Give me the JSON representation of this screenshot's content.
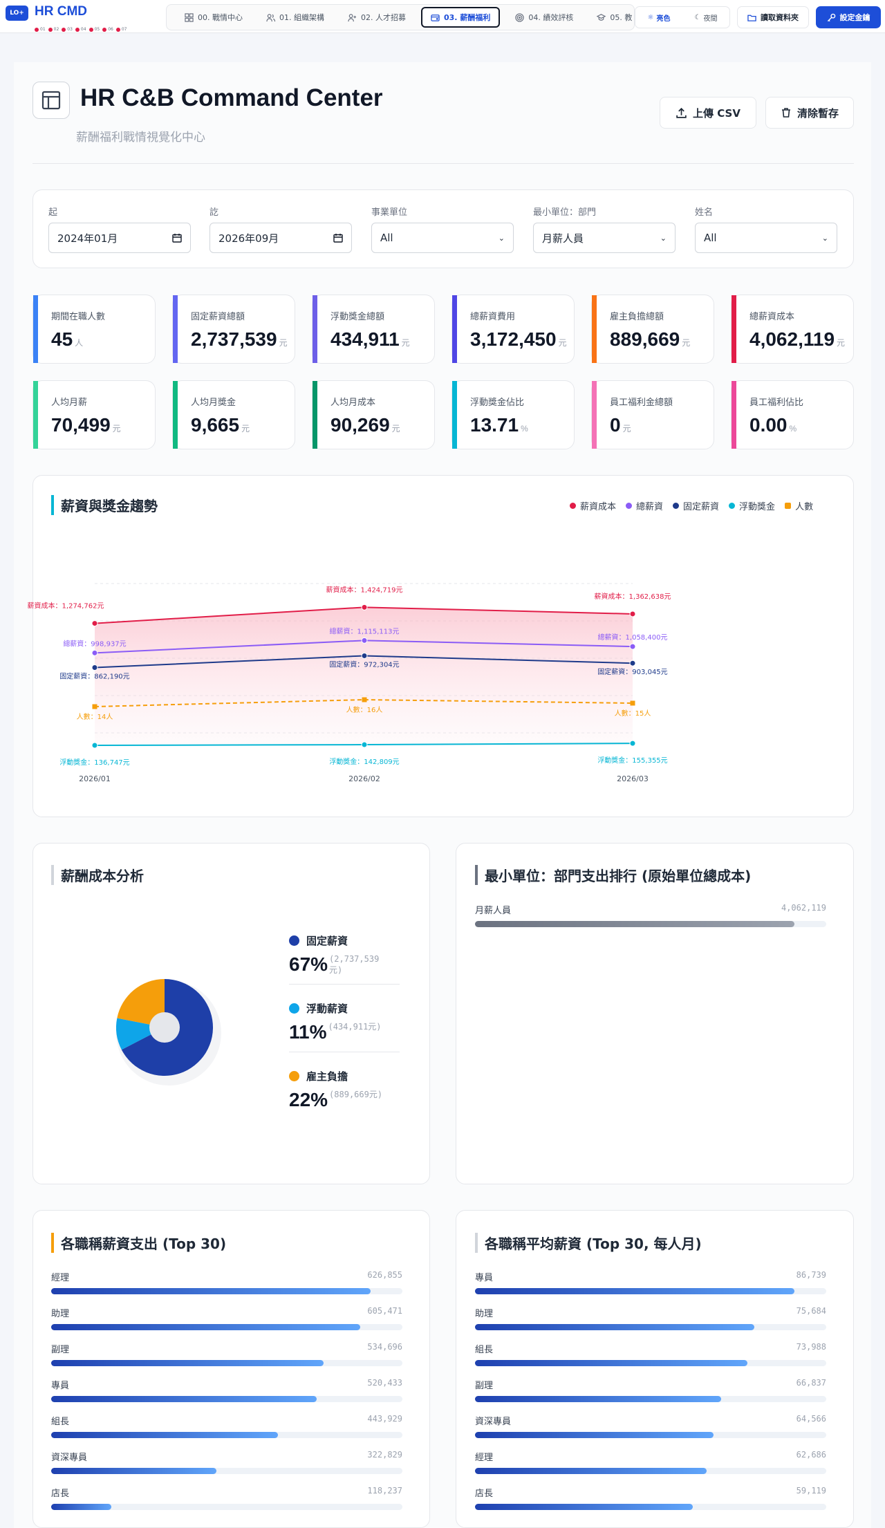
{
  "app": {
    "logo": "LO+",
    "title": "HR CMD",
    "steps": [
      "01",
      "02",
      "03",
      "04",
      "05",
      "06",
      "07"
    ]
  },
  "nav": {
    "tabs": [
      {
        "label": "00. 戰情中心",
        "icon": "grid-icon"
      },
      {
        "label": "01. 組織架構",
        "icon": "users-icon"
      },
      {
        "label": "02. 人才招募",
        "icon": "user-plus-icon"
      },
      {
        "label": "03. 薪酬福利",
        "icon": "wallet-icon"
      },
      {
        "label": "04. 績效評核",
        "icon": "target-icon"
      },
      {
        "label": "05. 教",
        "icon": "cap-icon"
      }
    ],
    "active_tab": 3,
    "theme_light": "亮色",
    "theme_dark": "夜間",
    "read_folder": "讀取資料夾",
    "set_key": "設定金鑰"
  },
  "header": {
    "title": "HR C&B Command Center",
    "subtitle": "薪酬福利戰情視覺化中心",
    "upload": "上傳 CSV",
    "clear": "清除暫存"
  },
  "filters": [
    {
      "label": "起",
      "value": "2024年01月",
      "type": "date"
    },
    {
      "label": "訖",
      "value": "2026年09月",
      "type": "date"
    },
    {
      "label": "事業單位",
      "value": "All",
      "type": "select"
    },
    {
      "label": "最小單位：部門",
      "value": "月薪人員",
      "type": "select"
    },
    {
      "label": "姓名",
      "value": "All",
      "type": "select"
    }
  ],
  "kpis_row1": [
    {
      "label": "期間在職人數",
      "value": "45",
      "unit": "人",
      "color": "#3b82f6"
    },
    {
      "label": "固定薪資總額",
      "value": "2,737,539",
      "unit": "元",
      "color": "#6366f1"
    },
    {
      "label": "浮動獎金總額",
      "value": "434,911",
      "unit": "元",
      "color": "#6d5fe8"
    },
    {
      "label": "總薪資費用",
      "value": "3,172,450",
      "unit": "元",
      "color": "#4f46e5"
    },
    {
      "label": "雇主負擔總額",
      "value": "889,669",
      "unit": "元",
      "color": "#f97316"
    },
    {
      "label": "總薪資成本",
      "value": "4,062,119",
      "unit": "元",
      "color": "#e11d48"
    }
  ],
  "kpis_row2": [
    {
      "label": "人均月薪",
      "value": "70,499",
      "unit": "元",
      "color": "#34d399"
    },
    {
      "label": "人均月獎金",
      "value": "9,665",
      "unit": "元",
      "color": "#10b981"
    },
    {
      "label": "人均月成本",
      "value": "90,269",
      "unit": "元",
      "color": "#059669"
    },
    {
      "label": "浮動獎金佔比",
      "value": "13.71",
      "unit": "%",
      "color": "#06b6d4"
    },
    {
      "label": "員工福利金總額",
      "value": "0",
      "unit": "元",
      "color": "#f472b6"
    },
    {
      "label": "員工福利佔比",
      "value": "0.00",
      "unit": "%",
      "color": "#ec4899"
    }
  ],
  "trend": {
    "title": "薪資與獎金趨勢",
    "legend": [
      {
        "name": "薪資成本",
        "color": "#e11d48"
      },
      {
        "name": "總薪資",
        "color": "#8b5cf6"
      },
      {
        "name": "固定薪資",
        "color": "#1e3a8a"
      },
      {
        "name": "浮動獎金",
        "color": "#06b6d4"
      },
      {
        "name": "人數",
        "color": "#f59e0b"
      }
    ]
  },
  "chart_data": {
    "type": "line",
    "x": [
      "2026/01",
      "2026/02",
      "2026/03"
    ],
    "series": [
      {
        "name": "薪資成本",
        "values": [
          1274762,
          1424719,
          1362638
        ],
        "color": "#e11d48",
        "labels": [
          "薪資成本：1,274,762元",
          "薪資成本：1,424,719元",
          "薪資成本：1,362,638元"
        ]
      },
      {
        "name": "總薪資",
        "values": [
          998937,
          1115113,
          1058400
        ],
        "color": "#8b5cf6",
        "labels": [
          "總薪資：998,937元",
          "總薪資：1,115,113元",
          "總薪資：1,058,400元"
        ]
      },
      {
        "name": "固定薪資",
        "values": [
          862190,
          972304,
          903045
        ],
        "color": "#1e3a8a",
        "labels": [
          "固定薪資：862,190元",
          "固定薪資：972,304元",
          "固定薪資：903,045元"
        ]
      },
      {
        "name": "浮動獎金",
        "values": [
          136747,
          142809,
          155355
        ],
        "color": "#06b6d4",
        "labels": [
          "浮動獎金：136,747元",
          "浮動獎金：142,809元",
          "浮動獎金：155,355元"
        ]
      },
      {
        "name": "人數",
        "values": [
          14,
          16,
          15
        ],
        "color": "#f59e0b",
        "dashed": true,
        "labels": [
          "人數：14人",
          "人數：16人",
          "人數：15人"
        ]
      }
    ]
  },
  "cost_analysis": {
    "title": "薪酬成本分析",
    "slices": [
      {
        "name": "固定薪資",
        "pct": "67%",
        "amount": "(2,737,539元)",
        "value": 2737539,
        "color": "#1e3fa8"
      },
      {
        "name": "浮動薪資",
        "pct": "11%",
        "amount": "(434,911元)",
        "value": 434911,
        "color": "#0ea5e9"
      },
      {
        "name": "雇主負擔",
        "pct": "22%",
        "amount": "(889,669元)",
        "value": 889669,
        "color": "#f59e0b"
      }
    ]
  },
  "dept_rank": {
    "title": "最小單位：部門支出排行 (原始單位總成本)",
    "rows": [
      {
        "name": "月薪人員",
        "value": "4,062,119",
        "ratio": 0.91
      }
    ]
  },
  "title_spend": {
    "title": "各職稱薪資支出 (Top 30)",
    "rows": [
      {
        "name": "經理",
        "value": "626,855",
        "ratio": 0.91
      },
      {
        "name": "助理",
        "value": "605,471",
        "ratio": 0.88
      },
      {
        "name": "副理",
        "value": "534,696",
        "ratio": 0.775
      },
      {
        "name": "專員",
        "value": "520,433",
        "ratio": 0.755
      },
      {
        "name": "組長",
        "value": "443,929",
        "ratio": 0.645
      },
      {
        "name": "資深專員",
        "value": "322,829",
        "ratio": 0.47
      },
      {
        "name": "店長",
        "value": "118,237",
        "ratio": 0.172
      }
    ]
  },
  "title_avg": {
    "title": "各職稱平均薪資 (Top 30, 每人月)",
    "rows": [
      {
        "name": "專員",
        "value": "86,739",
        "ratio": 0.91
      },
      {
        "name": "助理",
        "value": "75,684",
        "ratio": 0.795
      },
      {
        "name": "組長",
        "value": "73,988",
        "ratio": 0.775
      },
      {
        "name": "副理",
        "value": "66,837",
        "ratio": 0.7
      },
      {
        "name": "資深專員",
        "value": "64,566",
        "ratio": 0.68
      },
      {
        "name": "經理",
        "value": "62,686",
        "ratio": 0.66
      },
      {
        "name": "店長",
        "value": "59,119",
        "ratio": 0.62
      }
    ]
  }
}
